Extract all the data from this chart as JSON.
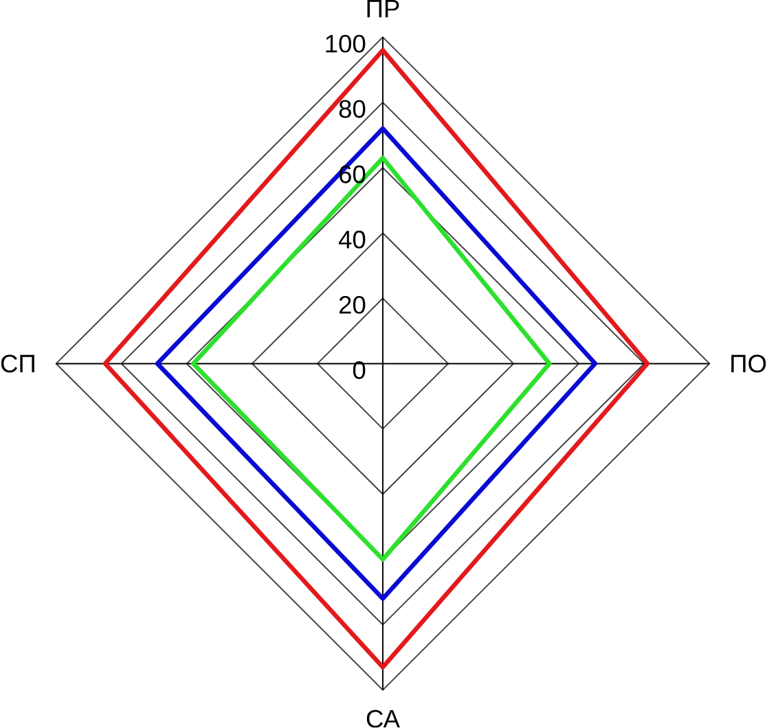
{
  "chart_data": {
    "type": "radar",
    "categories": [
      "ПР",
      "ПО",
      "СА",
      "СП"
    ],
    "ylim": [
      0,
      100
    ],
    "yticks": [
      0,
      20,
      40,
      60,
      80,
      100
    ],
    "grid": true,
    "series": [
      {
        "color": "#e31a1c",
        "values": [
          96,
          81,
          93,
          85
        ]
      },
      {
        "color": "#0a0ad2",
        "values": [
          72,
          65,
          72,
          69
        ]
      },
      {
        "color": "#2ee02e",
        "values": [
          63,
          51,
          60,
          58
        ]
      }
    ]
  }
}
